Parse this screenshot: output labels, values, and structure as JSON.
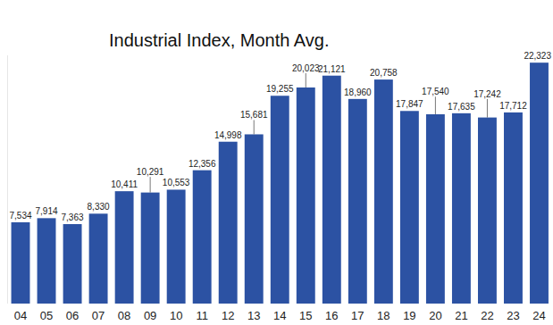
{
  "chart_data": {
    "type": "bar",
    "title": "Industrial Index, Month Avg.",
    "categories": [
      "04",
      "05",
      "06",
      "07",
      "08",
      "09",
      "10",
      "11",
      "12",
      "13",
      "14",
      "15",
      "16",
      "17",
      "18",
      "19",
      "20",
      "21",
      "22",
      "23",
      "24"
    ],
    "values": [
      7534,
      7914,
      7363,
      8330,
      10411,
      10291,
      10553,
      12356,
      14998,
      15681,
      19255,
      20023,
      21121,
      18960,
      20758,
      17847,
      17540,
      17635,
      17242,
      17712,
      22323
    ],
    "value_labels": [
      "7,534",
      "7,914",
      "7,363",
      "8,330",
      "10,411",
      "10,291",
      "10,553",
      "12,356",
      "14,998",
      "15,681",
      "19,255",
      "20,023",
      "21,121",
      "18,960",
      "20,758",
      "17,847",
      "17,540",
      "17,635",
      "17,242",
      "17,712",
      "22,323"
    ],
    "color": "#2c52a3",
    "ylim": [
      0,
      23000
    ],
    "grid": false,
    "data_labels": true,
    "tick_labels": "x"
  }
}
